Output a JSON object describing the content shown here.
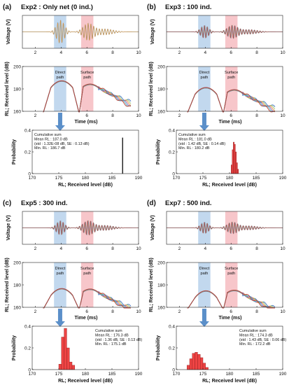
{
  "chart_data": [
    {
      "panel": "(a)",
      "title": "Exp2 : Only net (0 ind.)",
      "type": "line",
      "waveform": {
        "ylabel": "Voltage (V)",
        "xlabel": "",
        "xlim": [
          1,
          10
        ],
        "xticks": [
          "2",
          "4",
          "6",
          "8",
          "10"
        ]
      },
      "level": {
        "ylabel": "RL; Received level (dB)",
        "xlabel": "Time (ms)",
        "xlim": [
          1,
          10
        ],
        "ylim": [
          160,
          200
        ],
        "xticks": [
          "2",
          "4",
          "6",
          "8",
          "10"
        ],
        "yticks": [
          "160",
          "180",
          "200"
        ],
        "direct_label": "Direct path",
        "surface_label": "Surface path"
      },
      "histogram": {
        "ylabel": "Probability",
        "xlabel": "RL; Received level (dB)",
        "xlim": [
          170,
          190
        ],
        "ylim": [
          0,
          0.4
        ],
        "xticks": [
          "170",
          "175",
          "180",
          "185",
          "190"
        ],
        "yticks": [
          "0",
          "0.2",
          "0.4"
        ],
        "stats": [
          "Cumulative sum",
          "Mean RL : 187.0 dB",
          "(std : 1.32E-08 dB, SE : 0.13 dB)",
          "Min. RL : 186.7 dB"
        ],
        "stats_pos": "upper-left",
        "bins": [
          187.0
        ],
        "values": [
          0.33
        ]
      }
    },
    {
      "panel": "(b)",
      "title": "Exp3 : 100 ind.",
      "type": "line",
      "waveform": {
        "ylabel": "Voltage (V)",
        "xlabel": "",
        "xlim": [
          1,
          10
        ],
        "xticks": [
          "2",
          "4",
          "6",
          "8",
          "10"
        ]
      },
      "level": {
        "ylabel": "RL; Received level (dB)",
        "xlabel": "Time (ms)",
        "xlim": [
          1,
          10
        ],
        "ylim": [
          160,
          200
        ],
        "xticks": [
          "2",
          "4",
          "6",
          "8",
          "10"
        ],
        "yticks": [
          "160",
          "180",
          "200"
        ],
        "direct_label": "Direct path",
        "surface_label": "Surface path"
      },
      "histogram": {
        "ylabel": "Probability",
        "xlabel": "RL; Received level (dB)",
        "xlim": [
          170,
          190
        ],
        "ylim": [
          0,
          0.4
        ],
        "xticks": [
          "170",
          "175",
          "180",
          "185",
          "190"
        ],
        "yticks": [
          "0",
          "0.2",
          "0.4"
        ],
        "stats": [
          "Cumulative sum",
          "Mean RL : 181.0 dB",
          "(std : 1.42 dB, SE : 0.14 dB)",
          "Min. RL : 180.2 dB"
        ],
        "stats_pos": "upper-left",
        "bins": [
          180.4,
          180.6,
          180.8,
          181.0,
          181.2,
          181.4,
          181.6
        ],
        "values": [
          0.08,
          0.22,
          0.29,
          0.27,
          0.2,
          0.1,
          0.04
        ]
      }
    },
    {
      "panel": "(c)",
      "title": "Exp5 : 300 ind.",
      "type": "line",
      "waveform": {
        "ylabel": "Voltage (V)",
        "xlabel": "",
        "xlim": [
          1,
          10
        ],
        "xticks": [
          "2",
          "4",
          "6",
          "8",
          "10"
        ]
      },
      "level": {
        "ylabel": "RL; Received level (dB)",
        "xlabel": "Time (ms)",
        "xlim": [
          1,
          10
        ],
        "ylim": [
          160,
          200
        ],
        "xticks": [
          "2",
          "4",
          "6",
          "8",
          "10"
        ],
        "yticks": [
          "160",
          "180",
          "200"
        ],
        "direct_label": "Direct path",
        "surface_label": "Surface path"
      },
      "histogram": {
        "ylabel": "Probability",
        "xlabel": "RL; Received level (dB)",
        "xlim": [
          170,
          190
        ],
        "ylim": [
          0,
          0.4
        ],
        "xticks": [
          "170",
          "175",
          "180",
          "185",
          "190"
        ],
        "yticks": [
          "0",
          "0.2",
          "0.4"
        ],
        "stats": [
          "Cumulative sum",
          "Mean RL : 176.3 dB",
          "(std : 1.36 dB, SE : 0.13 dB)",
          "Min. RL : 175.1 dB"
        ],
        "stats_pos": "upper-right",
        "bins": [
          175.25,
          175.75,
          176.25,
          176.75,
          177.25,
          177.75
        ],
        "values": [
          0.05,
          0.3,
          0.38,
          0.2,
          0.07,
          0.04
        ]
      }
    },
    {
      "panel": "(d)",
      "title": "Exp7 : 500 ind.",
      "type": "line",
      "waveform": {
        "ylabel": "Voltage (V)",
        "xlabel": "",
        "xlim": [
          1,
          10
        ],
        "xticks": [
          "2",
          "4",
          "6",
          "8",
          "10"
        ]
      },
      "level": {
        "ylabel": "RL; Received level (dB)",
        "xlabel": "Time (ms)",
        "xlim": [
          1,
          10
        ],
        "ylim": [
          160,
          200
        ],
        "xticks": [
          "2",
          "4",
          "6",
          "8",
          "10"
        ],
        "yticks": [
          "160",
          "180",
          "200"
        ],
        "direct_label": "Direct path",
        "surface_label": "Surface path"
      },
      "histogram": {
        "ylabel": "Probability",
        "xlabel": "RL; Received level (dB)",
        "xlim": [
          170,
          190
        ],
        "ylim": [
          0,
          0.4
        ],
        "xticks": [
          "170",
          "175",
          "180",
          "185",
          "190"
        ],
        "yticks": [
          "0",
          "0.2",
          "0.4"
        ],
        "stats": [
          "Cumulative sum",
          "Mean RL : 174.3 dB",
          "(std : 1.43 dB, SE : 0.06 dB)",
          "Min. RL : 172.2 dB"
        ],
        "stats_pos": "upper-right",
        "bins": [
          172.25,
          172.75,
          173.25,
          173.75,
          174.25,
          174.75,
          175.25,
          175.75
        ],
        "values": [
          0.04,
          0.1,
          0.15,
          0.16,
          0.14,
          0.11,
          0.06,
          0.02
        ]
      }
    }
  ],
  "colors": {
    "direct_band": "#aecbe8",
    "surface_band": "#f4b3b8",
    "arrow": "#5b8fc9",
    "bar": "#ee4444",
    "bar_black": "#111111",
    "traces": [
      "#3a6fbf",
      "#9bc36a",
      "#ec8a3c",
      "#8a5fb8",
      "#3fb3c4",
      "#c0392b"
    ]
  }
}
